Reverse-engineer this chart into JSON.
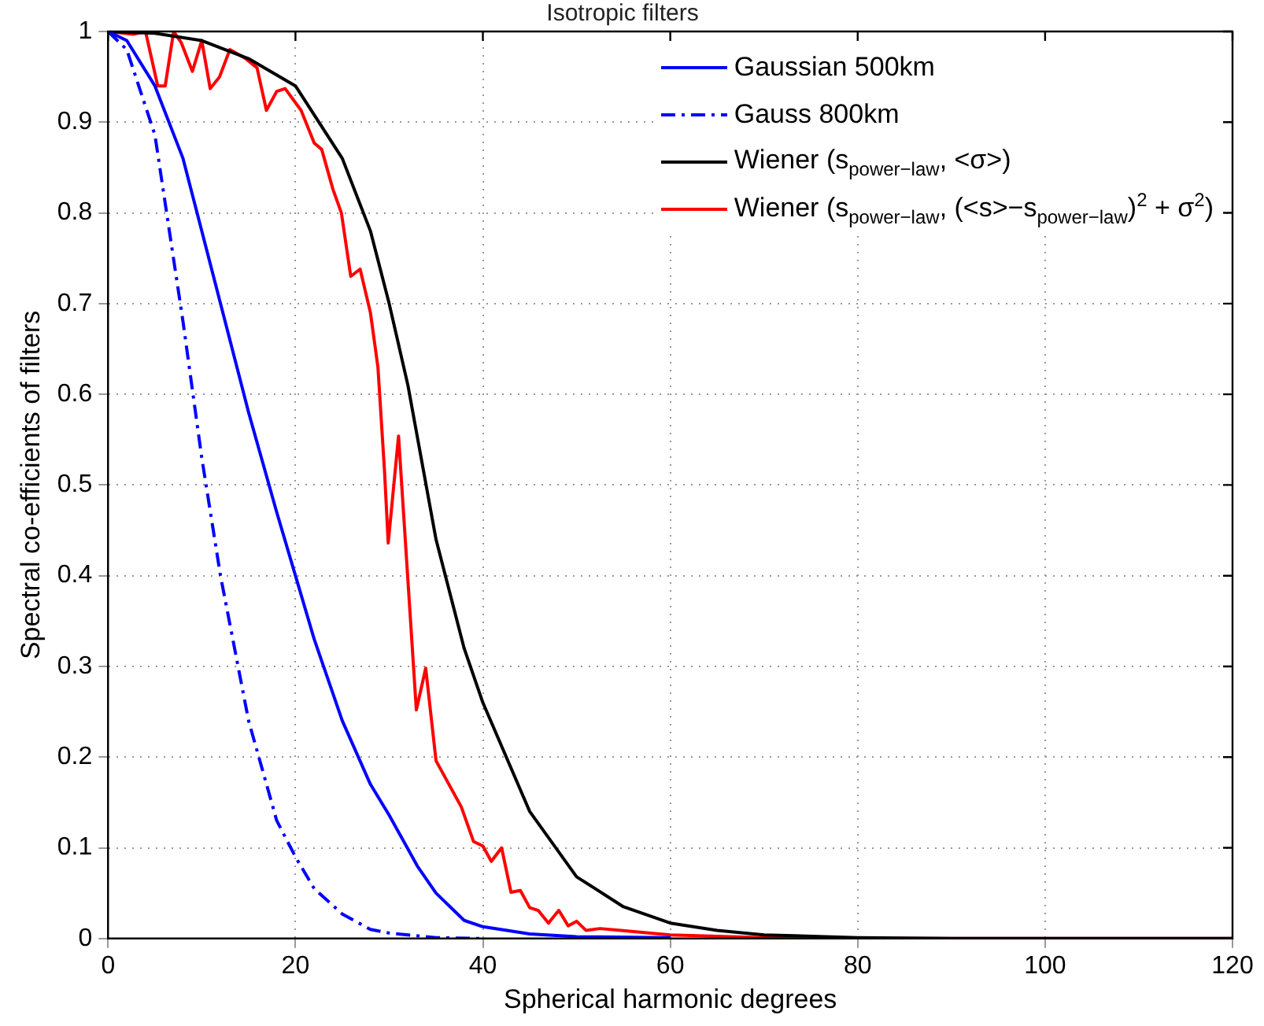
{
  "chart_data": {
    "type": "line",
    "title": "Isotropic filters",
    "xlabel": "Spherical harmonic degrees",
    "ylabel": "Spectral co-efficients of filters",
    "xlim": [
      0,
      120
    ],
    "xticks": [
      0,
      20,
      40,
      60,
      80,
      100,
      120
    ],
    "ylim": [
      0,
      1
    ],
    "yticks": [
      0,
      0.1,
      0.2,
      0.3,
      0.4,
      0.5,
      0.6,
      0.7,
      0.8,
      0.9,
      1
    ],
    "grid": true,
    "legend": "top right",
    "marker": "none",
    "series": [
      {
        "name": "Gaussian 500km",
        "color": "#0000ff",
        "line_style": "solid",
        "x": [
          0,
          2,
          5,
          8,
          10,
          12,
          15,
          18,
          20,
          22,
          25,
          28,
          30,
          33,
          35,
          38,
          40,
          45,
          50,
          60
        ],
        "values": [
          1,
          0.99,
          0.94,
          0.86,
          0.78,
          0.7,
          0.58,
          0.47,
          0.4,
          0.33,
          0.24,
          0.17,
          0.136,
          0.08,
          0.05,
          0.02,
          0.013,
          0.005,
          0.002,
          0.001
        ]
      },
      {
        "name": "Gauss 800km",
        "color": "#0000ff",
        "line_style": "dashdot",
        "x": [
          0,
          2,
          5,
          8,
          10,
          12,
          15,
          18,
          20,
          22,
          25,
          28,
          30,
          35,
          40
        ],
        "values": [
          1,
          0.98,
          0.886,
          0.68,
          0.53,
          0.4,
          0.24,
          0.13,
          0.09,
          0.055,
          0.027,
          0.01,
          0.006,
          0.001,
          0
        ]
      },
      {
        "name": "Wiener (s$_{power−law}$, <σ>)",
        "color": "#000000",
        "line_style": "solid",
        "x": [
          0,
          5,
          10,
          15,
          20,
          25,
          28,
          30,
          32,
          35,
          38,
          40,
          45,
          50,
          55,
          60,
          65,
          70,
          80,
          90,
          120
        ],
        "values": [
          1,
          0.998,
          0.99,
          0.97,
          0.94,
          0.86,
          0.78,
          0.7,
          0.61,
          0.44,
          0.32,
          0.26,
          0.14,
          0.068,
          0.035,
          0.017,
          0.009,
          0.004,
          0.001,
          0,
          0
        ]
      },
      {
        "name": "Wiener (s$_{power−law}$, (<s>−s$_{power−law}$)$^{2}$ + σ$^{2}$)",
        "color": "#ff0000",
        "line_style": "solid",
        "x": [
          0,
          2.7,
          4,
          5.3,
          6.1,
          7,
          7.8,
          9,
          10,
          10.9,
          11.9,
          13,
          14.7,
          15.9,
          16.9,
          18,
          18.9,
          20.6,
          22,
          22.8,
          24,
          24.9,
          25.9,
          26.9,
          28,
          28.8,
          29.5,
          29.9,
          31,
          32.9,
          33.9,
          35,
          37.7,
          39,
          40,
          40.9,
          42,
          43,
          44,
          45,
          45.9,
          47,
          48.1,
          49.1,
          50,
          51,
          52.5,
          54.7,
          60,
          70,
          80,
          120
        ],
        "values": [
          1,
          0.997,
          1,
          0.94,
          0.94,
          1,
          0.988,
          0.956,
          0.99,
          0.937,
          0.95,
          0.98,
          0.97,
          0.96,
          0.913,
          0.934,
          0.937,
          0.913,
          0.877,
          0.87,
          0.826,
          0.8,
          0.73,
          0.738,
          0.69,
          0.63,
          0.516,
          0.436,
          0.554,
          0.252,
          0.298,
          0.196,
          0.145,
          0.107,
          0.102,
          0.085,
          0.1,
          0.051,
          0.053,
          0.034,
          0.031,
          0.017,
          0.031,
          0.014,
          0.019,
          0.009,
          0.011,
          0.009,
          0.004,
          0.001,
          0,
          0
        ]
      }
    ]
  }
}
